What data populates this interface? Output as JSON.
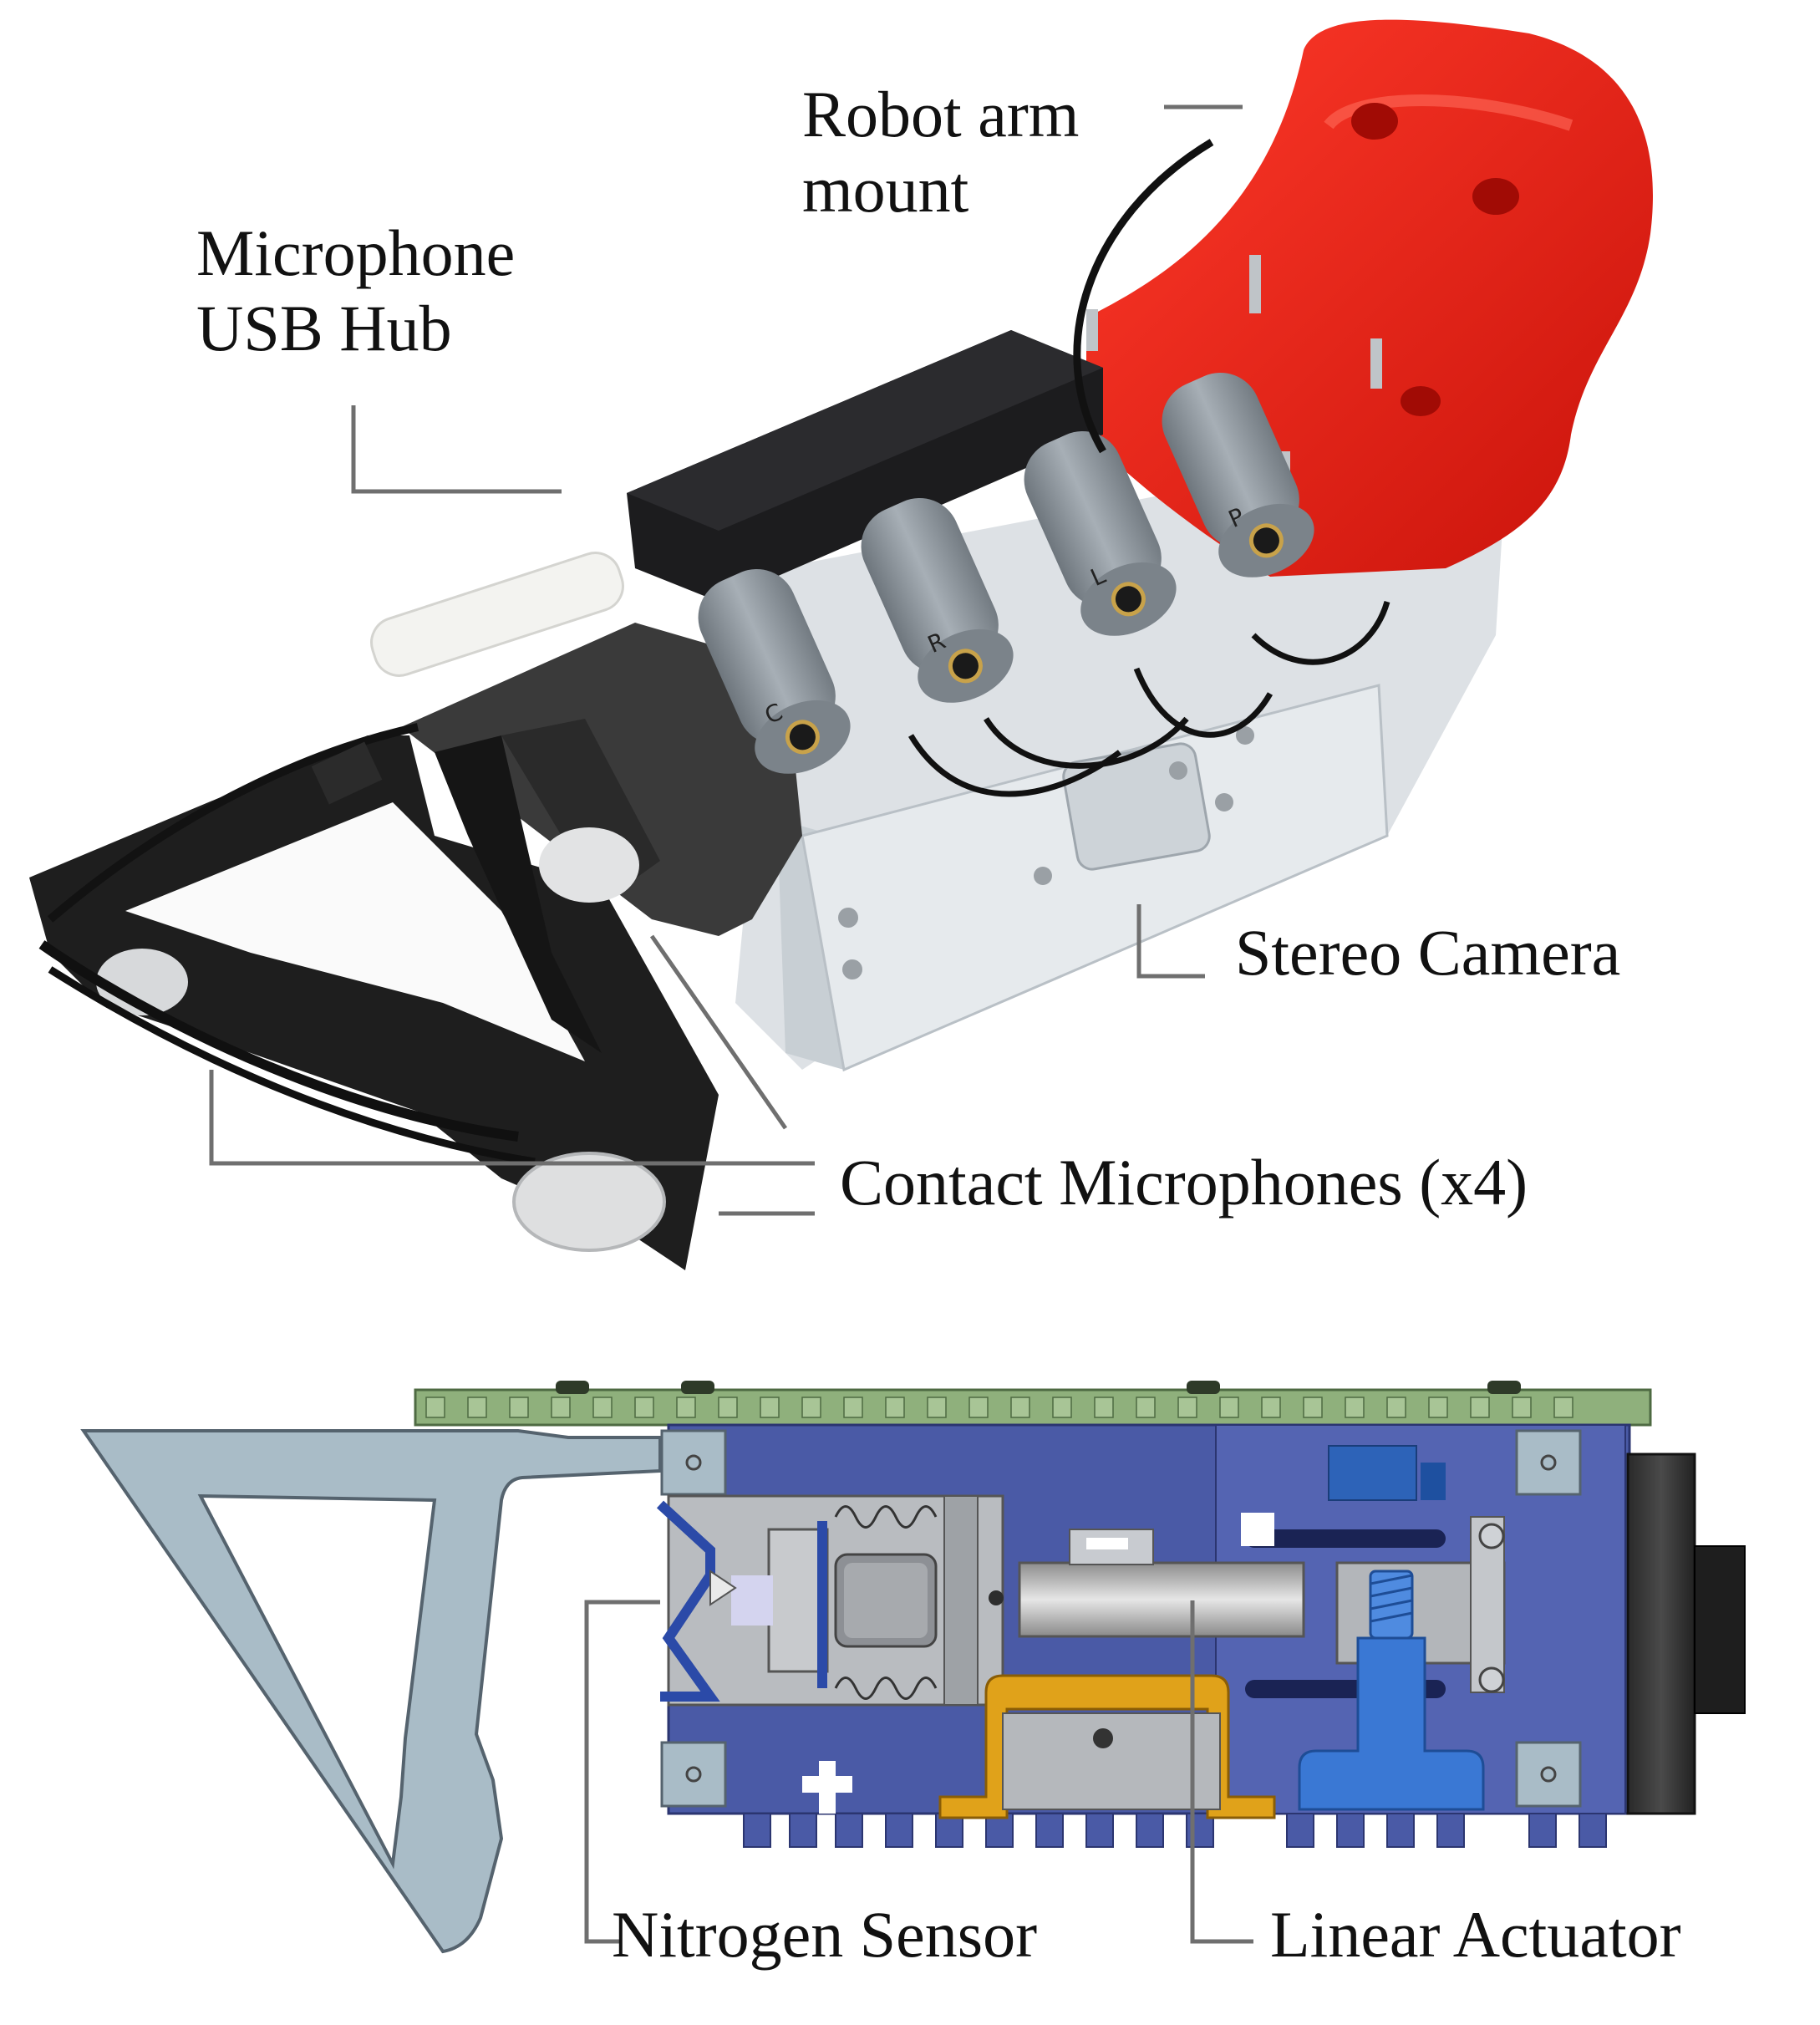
{
  "photo_labels": {
    "robot_arm_mount": [
      "Robot arm",
      "mount"
    ],
    "microphone_usb_hub": [
      "Microphone",
      "USB Hub"
    ],
    "stereo_camera": "Stereo Camera",
    "contact_microphones": "Contact Microphones (x4)"
  },
  "cad_labels": {
    "nitrogen_sensor": "Nitrogen Sensor",
    "linear_actuator": "Linear Actuator"
  },
  "mic_letters": [
    "C",
    "R",
    "L",
    "P"
  ],
  "colors": {
    "mount_red": "#e8180f",
    "hub_black": "#1c1c1e",
    "mic_gray": "#8e969e",
    "acrylic": "#dfe4e8",
    "cad_blue": "#4a5aa6",
    "cad_pcb_green": "#8fb07c",
    "cad_frame": "#a9bcc7",
    "cad_orange": "#e0a21a",
    "cad_actuator_blue": "#3a78d4",
    "leader_line": "#6f6f6f"
  }
}
